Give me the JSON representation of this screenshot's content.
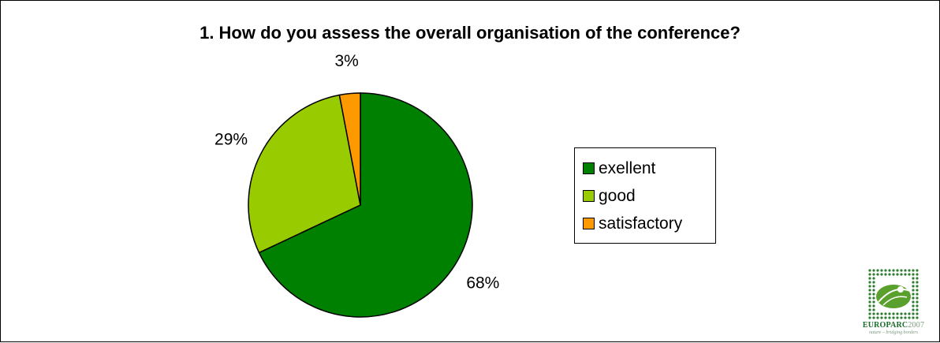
{
  "chart_data": {
    "type": "pie",
    "title": "1. How do you assess the overall organisation of the conference?",
    "categories": [
      "exellent",
      "good",
      "satisfactory"
    ],
    "values": [
      68,
      29,
      3
    ],
    "labels": [
      "68%",
      "29%",
      "3%"
    ],
    "colors": [
      "#008000",
      "#99cc00",
      "#ff9900"
    ],
    "start_angle_deg": 0,
    "direction": "clockwise",
    "legend_position": "right"
  },
  "logo": {
    "name": "EUROPARC",
    "year": "2007",
    "tagline": "nature – bridging borders"
  }
}
